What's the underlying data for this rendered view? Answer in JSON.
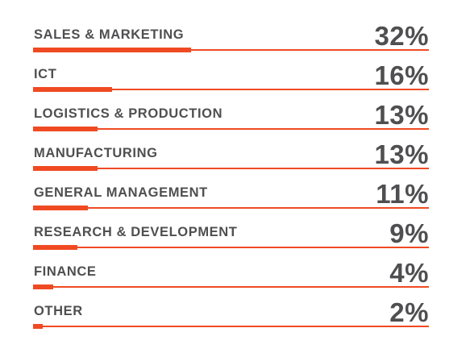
{
  "chart_data": {
    "type": "bar",
    "orientation": "horizontal",
    "categories": [
      "SALES & MARKETING",
      "ICT",
      "LOGISTICS & PRODUCTION",
      "MANUFACTURING",
      "GENERAL MANAGEMENT",
      "RESEARCH & DEVELOPMENT",
      "FINANCE",
      "OTHER"
    ],
    "values": [
      32,
      16,
      13,
      13,
      11,
      9,
      4,
      2
    ],
    "value_labels": [
      "32%",
      "16%",
      "13%",
      "13%",
      "11%",
      "9%",
      "4%",
      "2%"
    ],
    "title": "",
    "xlabel": "",
    "ylabel": "",
    "xlim": [
      0,
      80
    ],
    "grid": false,
    "legend": "none",
    "colors": {
      "bar": "#f04a23",
      "text": "#4f4f51",
      "background": "#ffffff"
    }
  }
}
